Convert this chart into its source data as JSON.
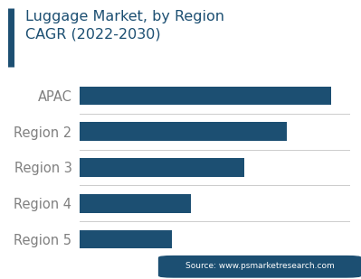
{
  "title_line1": "Luggage Market, by Region",
  "title_line2": "CAGR (2022-2030)",
  "categories": [
    "APAC",
    "Region 2",
    "Region 3",
    "Region 4",
    "Region 5"
  ],
  "values": [
    95,
    78,
    62,
    42,
    35
  ],
  "bar_color": "#1c4f72",
  "title_color": "#1c4f72",
  "accent_bar_color": "#1c4f72",
  "background_color": "#ffffff",
  "label_color": "#808080",
  "separator_color": "#cccccc",
  "source_text": "Source: www.psmarketresearch.com",
  "source_bg": "#1c4f72",
  "source_text_color": "#ffffff",
  "xlim": [
    0,
    102
  ],
  "title_fontsize": 11.5,
  "label_fontsize": 10.5,
  "source_fontsize": 6.5
}
